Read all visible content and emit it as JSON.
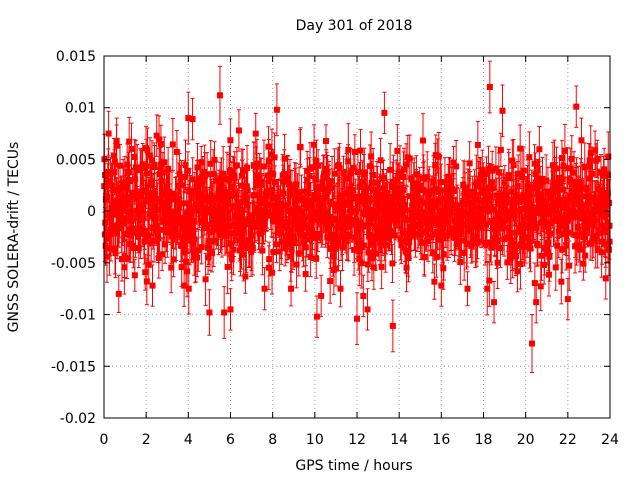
{
  "chart_data": {
    "type": "scatter",
    "title": "Day 301 of 2018",
    "xlabel": "GPS time / hours",
    "ylabel": "GNSS SOLERA-drift / TECUs",
    "xlim": [
      0,
      24
    ],
    "ylim": [
      -0.02,
      0.015
    ],
    "xticks": [
      0,
      2,
      4,
      6,
      8,
      10,
      12,
      14,
      16,
      18,
      20,
      22,
      24
    ],
    "xtick_labels": [
      "0",
      "2",
      "4",
      "6",
      "8",
      "10",
      "12",
      "14",
      "16",
      "18",
      "20",
      "22",
      "24"
    ],
    "yticks": [
      -0.02,
      -0.015,
      -0.01,
      -0.005,
      0,
      0.005,
      0.01,
      0.015
    ],
    "ytick_labels": [
      "-0.02",
      "-0.015",
      "-0.01",
      "-0.005",
      "0",
      "0.005",
      "0.01",
      "0.015"
    ],
    "grid": true,
    "series_color": "#ff0000",
    "marker": "square-with-errorbars",
    "series": [
      {
        "name": "SOLERA drift",
        "points": [
          {
            "x": 0.05,
            "y": 0.0035,
            "err": 0.0018
          },
          {
            "x": 0.6,
            "y": 0.0068,
            "err": 0.0022
          },
          {
            "x": 0.7,
            "y": -0.008,
            "err": 0.0018
          },
          {
            "x": 1.1,
            "y": 0.0045,
            "err": 0.002
          },
          {
            "x": 2.3,
            "y": -0.0072,
            "err": 0.002
          },
          {
            "x": 2.5,
            "y": 0.0073,
            "err": 0.002
          },
          {
            "x": 2.7,
            "y": 0.0065,
            "err": 0.0018
          },
          {
            "x": 3.8,
            "y": -0.0072,
            "err": 0.002
          },
          {
            "x": 4.0,
            "y": 0.009,
            "err": 0.0025
          },
          {
            "x": 4.2,
            "y": 0.0089,
            "err": 0.002
          },
          {
            "x": 5.0,
            "y": -0.0098,
            "err": 0.0022
          },
          {
            "x": 5.5,
            "y": 0.0112,
            "err": 0.0028
          },
          {
            "x": 5.7,
            "y": -0.0098,
            "err": 0.0025
          },
          {
            "x": 6.0,
            "y": -0.0095,
            "err": 0.002
          },
          {
            "x": 6.4,
            "y": 0.0078,
            "err": 0.002
          },
          {
            "x": 8.2,
            "y": 0.0098,
            "err": 0.0025
          },
          {
            "x": 10.1,
            "y": -0.0102,
            "err": 0.002
          },
          {
            "x": 10.3,
            "y": -0.0082,
            "err": 0.002
          },
          {
            "x": 12.0,
            "y": -0.0104,
            "err": 0.0025
          },
          {
            "x": 12.3,
            "y": -0.0082,
            "err": 0.002
          },
          {
            "x": 12.5,
            "y": -0.0095,
            "err": 0.002
          },
          {
            "x": 13.3,
            "y": 0.0095,
            "err": 0.002
          },
          {
            "x": 13.7,
            "y": -0.0111,
            "err": 0.0025
          },
          {
            "x": 16.0,
            "y": -0.0072,
            "err": 0.002
          },
          {
            "x": 18.3,
            "y": 0.012,
            "err": 0.0025
          },
          {
            "x": 18.5,
            "y": -0.0088,
            "err": 0.002
          },
          {
            "x": 18.9,
            "y": 0.0097,
            "err": 0.0025
          },
          {
            "x": 20.3,
            "y": -0.0128,
            "err": 0.0028
          },
          {
            "x": 20.5,
            "y": -0.0088,
            "err": 0.002
          },
          {
            "x": 22.0,
            "y": -0.0085,
            "err": 0.002
          },
          {
            "x": 22.4,
            "y": 0.0101,
            "err": 0.002
          },
          {
            "x": 23.8,
            "y": -0.0065,
            "err": 0.002
          },
          {
            "x": 23.9,
            "y": 0.0035,
            "err": 0.002
          }
        ]
      }
    ],
    "bulk_band": {
      "description": "dense cloud of points spanning full time range",
      "x_range": [
        0,
        24
      ],
      "y_center": 0.0,
      "y_spread": 0.0035,
      "err_spread": 0.0022,
      "point_count": 1440,
      "seed": 301
    }
  }
}
